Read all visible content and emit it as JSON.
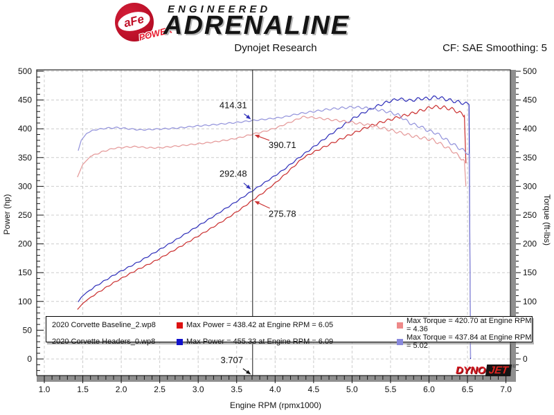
{
  "header": {
    "brand": {
      "badge_text": "aFe",
      "badge_sub": "POWER",
      "tagline": "ENGINEERED",
      "name": "ADRENALINE"
    },
    "subtitle": "Dynojet Research",
    "correction": "CF: SAE Smoothing: 5"
  },
  "chart_data": {
    "type": "line",
    "xlabel": "Engine RPM (rpmx1000)",
    "ylabel_left": "Power (hp)",
    "ylabel_right": "Torque (ft-lbs)",
    "xlim": [
      1.0,
      7.0
    ],
    "ylim_left": [
      0,
      500
    ],
    "ylim_right": [
      0,
      500
    ],
    "x_ticks": [
      1.0,
      1.5,
      2.0,
      2.5,
      3.0,
      3.5,
      4.0,
      4.5,
      5.0,
      5.5,
      6.0,
      6.5,
      7.0
    ],
    "y_ticks": [
      0,
      50,
      100,
      150,
      200,
      250,
      300,
      350,
      400,
      450,
      500
    ],
    "grid": true,
    "legend_position": "bottom",
    "cursor": {
      "rpm": 3.707,
      "label": "3.707"
    },
    "series": [
      {
        "name": "2020 Corvette Baseline_2.wp8 - Power (hp)",
        "axis": "left",
        "color": "#cc3434",
        "phase": 0.4,
        "points": [
          [
            1.43,
            86.0
          ],
          [
            1.5,
            96.5
          ],
          [
            1.6,
            107.2
          ],
          [
            1.75,
            119.9
          ],
          [
            1.9,
            132.4
          ],
          [
            2.05,
            143.6
          ],
          [
            2.2,
            154.6
          ],
          [
            2.35,
            164.2
          ],
          [
            2.5,
            174.7
          ],
          [
            2.65,
            186.2
          ],
          [
            2.8,
            197.8
          ],
          [
            3.0,
            213.6
          ],
          [
            3.2,
            229.7
          ],
          [
            3.4,
            246.6
          ],
          [
            3.55,
            260.2
          ],
          [
            3.707,
            275.78
          ],
          [
            3.85,
            289.5
          ],
          [
            4.0,
            305.4
          ],
          [
            4.15,
            323.2
          ],
          [
            4.36,
            349.2
          ],
          [
            4.5,
            359.4
          ],
          [
            4.65,
            369.2
          ],
          [
            4.8,
            378.8
          ],
          [
            5.0,
            391.2
          ],
          [
            5.2,
            403.0
          ],
          [
            5.4,
            412.3
          ],
          [
            5.6,
            420.1
          ],
          [
            5.8,
            427.4
          ],
          [
            6.05,
            438.42
          ],
          [
            6.2,
            436.8
          ],
          [
            6.3,
            434.2
          ],
          [
            6.4,
            427.8
          ],
          [
            6.45,
            423.7
          ],
          [
            6.46,
            423.0
          ],
          [
            6.48,
            340.0
          ]
        ]
      },
      {
        "name": "2020 Corvette Headers_0.wp8 - Power (hp)",
        "axis": "left",
        "color": "#3434bb",
        "phase": 2.1,
        "points": [
          [
            1.44,
            99.2
          ],
          [
            1.48,
            107.1
          ],
          [
            1.55,
            115.7
          ],
          [
            1.65,
            125.0
          ],
          [
            1.8,
            137.4
          ],
          [
            1.95,
            149.3
          ],
          [
            2.1,
            159.9
          ],
          [
            2.25,
            170.5
          ],
          [
            2.4,
            182.3
          ],
          [
            2.55,
            194.2
          ],
          [
            2.7,
            206.2
          ],
          [
            2.85,
            218.7
          ],
          [
            3.0,
            231.3
          ],
          [
            3.2,
            248.0
          ],
          [
            3.5,
            273.9
          ],
          [
            3.707,
            292.48
          ],
          [
            3.9,
            309.6
          ],
          [
            4.1,
            327.9
          ],
          [
            4.3,
            348.8
          ],
          [
            4.5,
            368.4
          ],
          [
            4.7,
            388.4
          ],
          [
            4.85,
            402.6
          ],
          [
            5.02,
            418.5
          ],
          [
            5.15,
            428.0
          ],
          [
            5.3,
            438.0
          ],
          [
            5.45,
            446.2
          ],
          [
            5.6,
            452.1
          ],
          [
            5.75,
            448.9
          ],
          [
            5.9,
            452.7
          ],
          [
            6.0,
            452.4
          ],
          [
            6.09,
            455.33
          ],
          [
            6.2,
            452.1
          ],
          [
            6.3,
            448.6
          ],
          [
            6.4,
            446.0
          ],
          [
            6.5,
            443.0
          ],
          [
            6.52,
            441.9
          ],
          [
            6.54,
            0.0
          ]
        ]
      },
      {
        "name": "2020 Corvette Baseline_2.wp8 - Torque (ft-lbs)",
        "axis": "right",
        "color": "#e59a9a",
        "phase": 3.2,
        "points": [
          [
            1.43,
            316
          ],
          [
            1.5,
            338
          ],
          [
            1.6,
            352
          ],
          [
            1.75,
            360
          ],
          [
            1.9,
            366
          ],
          [
            2.05,
            368
          ],
          [
            2.2,
            369
          ],
          [
            2.35,
            367
          ],
          [
            2.5,
            367
          ],
          [
            2.65,
            369
          ],
          [
            2.8,
            371
          ],
          [
            3.0,
            374
          ],
          [
            3.2,
            377
          ],
          [
            3.4,
            381
          ],
          [
            3.55,
            385
          ],
          [
            3.707,
            390.71
          ],
          [
            3.85,
            395
          ],
          [
            4.0,
            401
          ],
          [
            4.15,
            409
          ],
          [
            4.36,
            420.7
          ],
          [
            4.5,
            419.5
          ],
          [
            4.65,
            417
          ],
          [
            4.8,
            414.5
          ],
          [
            5.0,
            411
          ],
          [
            5.2,
            407
          ],
          [
            5.4,
            401
          ],
          [
            5.6,
            394
          ],
          [
            5.8,
            387
          ],
          [
            6.05,
            380.6
          ],
          [
            6.2,
            370
          ],
          [
            6.3,
            362
          ],
          [
            6.4,
            351
          ],
          [
            6.45,
            345
          ],
          [
            6.46,
            344
          ],
          [
            6.48,
            300
          ]
        ]
      },
      {
        "name": "2020 Corvette Headers_0.wp8 - Torque (ft-lbs)",
        "axis": "right",
        "color": "#9595dc",
        "phase": 4.7,
        "points": [
          [
            1.44,
            362
          ],
          [
            1.48,
            380
          ],
          [
            1.55,
            392
          ],
          [
            1.65,
            398
          ],
          [
            1.8,
            401
          ],
          [
            1.95,
            402
          ],
          [
            2.1,
            400
          ],
          [
            2.25,
            398
          ],
          [
            2.4,
            399
          ],
          [
            2.55,
            400
          ],
          [
            2.7,
            401
          ],
          [
            2.85,
            403
          ],
          [
            3.0,
            405
          ],
          [
            3.2,
            407
          ],
          [
            3.5,
            411
          ],
          [
            3.707,
            414.31
          ],
          [
            3.9,
            417
          ],
          [
            4.1,
            420
          ],
          [
            4.3,
            426
          ],
          [
            4.5,
            430
          ],
          [
            4.7,
            434
          ],
          [
            4.85,
            436
          ],
          [
            5.02,
            437.84
          ],
          [
            5.15,
            436.5
          ],
          [
            5.3,
            434
          ],
          [
            5.45,
            430
          ],
          [
            5.6,
            424
          ],
          [
            5.75,
            410
          ],
          [
            5.9,
            403
          ],
          [
            6.0,
            396
          ],
          [
            6.09,
            392.7
          ],
          [
            6.2,
            383
          ],
          [
            6.3,
            374
          ],
          [
            6.4,
            366
          ],
          [
            6.5,
            358
          ],
          [
            6.52,
            356
          ],
          [
            6.54,
            2
          ]
        ]
      }
    ],
    "annotations": [
      {
        "text": "414.31",
        "color": "#3434bb",
        "rpm": 3.707,
        "value": 414.31,
        "label_offset": [
          -28,
          -22
        ]
      },
      {
        "text": "390.71",
        "color": "#cc3434",
        "rpm": 3.707,
        "value": 390.71,
        "label_offset": [
          43,
          16
        ]
      },
      {
        "text": "292.48",
        "color": "#3434bb",
        "rpm": 3.707,
        "value": 292.48,
        "label_offset": [
          -28,
          -24
        ]
      },
      {
        "text": "275.78",
        "color": "#cc3434",
        "rpm": 3.707,
        "value": 275.78,
        "label_offset": [
          43,
          20
        ]
      },
      {
        "text": "3.707",
        "color": "#111111",
        "rpm": 3.707,
        "value": -29,
        "label_offset": [
          -30,
          -22
        ]
      }
    ]
  },
  "legend": {
    "rows": [
      {
        "name": "2020 Corvette Baseline_2.wp8",
        "power_color": "#dd1111",
        "power": "Max Power = 438.42 at Engine RPM = 6.05",
        "torque_color": "#ee8989",
        "torque": "Max Torque = 420.70 at Engine RPM = 4.36"
      },
      {
        "name": "2020 Corvette Headers_0.wp8",
        "power_color": "#1111cc",
        "power": "Max Power = 455.33 at Engine RPM = 6.09",
        "torque_color": "#8989dd",
        "torque": "Max Torque = 437.84 at Engine RPM = 5.02"
      }
    ]
  },
  "footer_logo": {
    "part1": "DYNO",
    "part2": "JET",
    "reg": "®"
  }
}
